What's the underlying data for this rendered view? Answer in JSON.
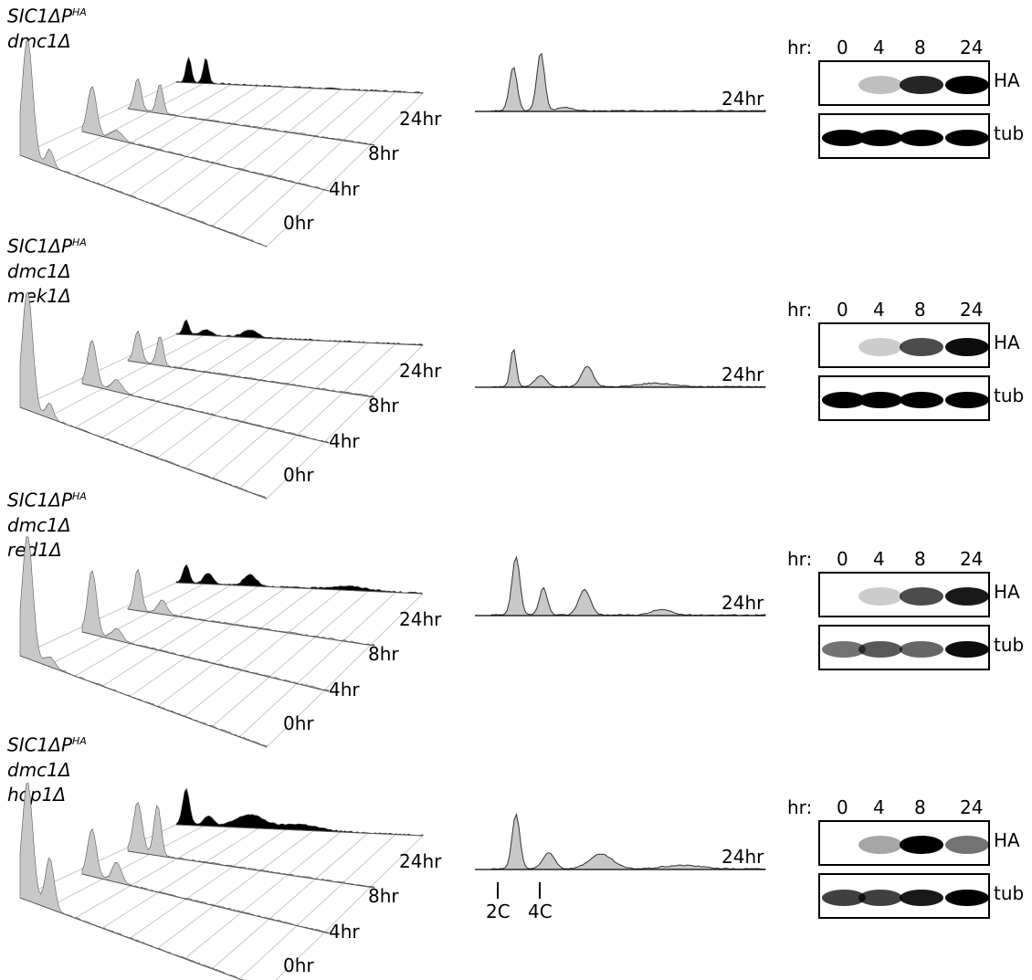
{
  "panels": [
    {
      "genotype": [
        "dmc1Δ"
      ],
      "single_label": "24hr",
      "blot_hr_label": "hr:",
      "blot_times": [
        "0",
        "4",
        "8",
        "24"
      ],
      "blot_rows": [
        "HA",
        "tub"
      ],
      "ha_intensity": [
        0.0,
        0.25,
        0.85,
        1.0
      ],
      "tub_intensity": [
        1.0,
        1.0,
        1.0,
        1.0
      ]
    },
    {
      "genotype": [
        "dmc1Δ",
        "mek1Δ"
      ],
      "single_label": "24hr",
      "blot_hr_label": "hr:",
      "blot_times": [
        "0",
        "4",
        "8",
        "24"
      ],
      "blot_rows": [
        "HA",
        "tub"
      ],
      "ha_intensity": [
        0.0,
        0.2,
        0.7,
        0.95
      ],
      "tub_intensity": [
        1.0,
        1.0,
        1.0,
        1.0
      ]
    },
    {
      "genotype": [
        "dmc1Δ",
        "red1Δ"
      ],
      "single_label": "24hr",
      "blot_hr_label": "hr:",
      "blot_times": [
        "0",
        "4",
        "8",
        "24"
      ],
      "blot_rows": [
        "HA",
        "tub"
      ],
      "ha_intensity": [
        0.0,
        0.2,
        0.7,
        0.9
      ],
      "tub_intensity": [
        0.55,
        0.65,
        0.6,
        0.95
      ]
    },
    {
      "genotype": [
        "dmc1Δ",
        "hop1Δ"
      ],
      "single_label": "24hr",
      "blot_hr_label": "hr:",
      "blot_times": [
        "0",
        "4",
        "8",
        "24"
      ],
      "blot_rows": [
        "HA",
        "tub"
      ],
      "ha_intensity": [
        0.0,
        0.35,
        1.0,
        0.55
      ],
      "tub_intensity": [
        0.75,
        0.75,
        0.9,
        1.0
      ]
    }
  ],
  "genotype_parent": {
    "gene": "SIC1ΔP",
    "tag": "HA"
  },
  "timepoints": [
    "24hr",
    "8hr",
    "4hr",
    "0hr"
  ],
  "markers": [
    "2C",
    "4C"
  ],
  "colors": {
    "histogram_fill": "#c8c8c8",
    "final_fill": "#000000",
    "line": "#000000"
  }
}
